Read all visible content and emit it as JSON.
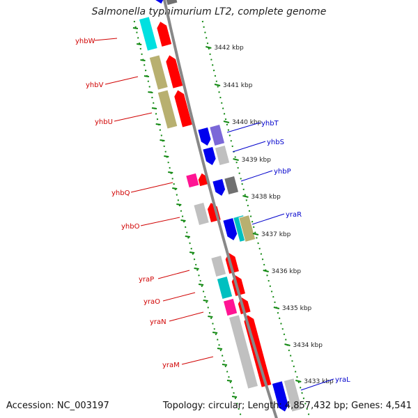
{
  "title": "Salmonella typhimurium LT2, complete genome",
  "footer": {
    "accession": "Accession: NC_003197",
    "summary": "Topology: circular; Length: 4,857,432 bp; Genes: 4,541"
  },
  "colors": {
    "red": "#ff0000",
    "blue": "#0000ee",
    "cyan": "#00e0e0",
    "olive": "#b8b070",
    "magenta": "#ff1493",
    "gray": "#c0c0c0",
    "darkgray": "#707070",
    "lavender": "#7b68d8",
    "teal": "#00c0c0",
    "green_dots": "#118811",
    "label_red": "#d00000",
    "label_blue": "#0000cc"
  },
  "scale": {
    "ticks": [
      "3442 kbp",
      "3441 kbp",
      "3440 kbp",
      "3439 kbp",
      "3438 kbp",
      "3437 kbp",
      "3436 kbp",
      "3435 kbp",
      "3434 kbp",
      "3433 kbp"
    ]
  },
  "left_labels": [
    "yhbW",
    "yhbV",
    "yhbU",
    "yhbQ",
    "yhbO",
    "yraP",
    "yraO",
    "yraN",
    "yraM"
  ],
  "right_labels": [
    "yhbT",
    "yhbS",
    "yhbP",
    "yraR",
    "yraL"
  ]
}
